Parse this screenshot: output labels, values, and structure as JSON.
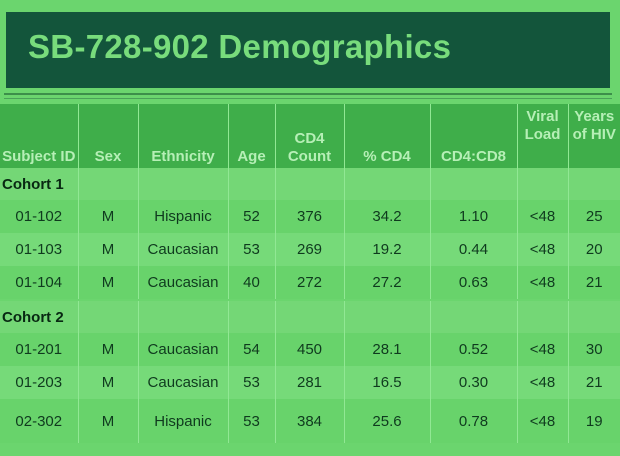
{
  "title": "SB-728-902 Demographics",
  "headers": {
    "subject_id": "Subject ID",
    "sex": "Sex",
    "ethnicity": "Ethnicity",
    "age": "Age",
    "cd4_count": "CD4 Count",
    "pct_cd4": "% CD4",
    "ratio": "CD4:CD8",
    "viral_load": "Viral Load",
    "years_hiv": "Years of HIV"
  },
  "cohorts": [
    {
      "label": "Cohort 1",
      "rows": [
        {
          "id": "01-102",
          "sex": "M",
          "ethnicity": "Hispanic",
          "age": "52",
          "cd4": "376",
          "pct": "34.2",
          "ratio": "1.10",
          "vl": "<48",
          "years": "25"
        },
        {
          "id": "01-103",
          "sex": "M",
          "ethnicity": "Caucasian",
          "age": "53",
          "cd4": "269",
          "pct": "19.2",
          "ratio": "0.44",
          "vl": "<48",
          "years": "20"
        },
        {
          "id": "01-104",
          "sex": "M",
          "ethnicity": "Caucasian",
          "age": "40",
          "cd4": "272",
          "pct": "27.2",
          "ratio": "0.63",
          "vl": "<48",
          "years": "21"
        }
      ]
    },
    {
      "label": "Cohort 2",
      "rows": [
        {
          "id": "01-201",
          "sex": "M",
          "ethnicity": "Caucasian",
          "age": "54",
          "cd4": "450",
          "pct": "28.1",
          "ratio": "0.52",
          "vl": "<48",
          "years": "30"
        },
        {
          "id": "01-203",
          "sex": "M",
          "ethnicity": "Caucasian",
          "age": "53",
          "cd4": "281",
          "pct": "16.5",
          "ratio": "0.30",
          "vl": "<48",
          "years": "21"
        },
        {
          "id": "02-302",
          "sex": "M",
          "ethnicity": "Hispanic",
          "age": "53",
          "cd4": "384",
          "pct": "25.6",
          "ratio": "0.78",
          "vl": "<48",
          "years": "19"
        }
      ]
    }
  ]
}
